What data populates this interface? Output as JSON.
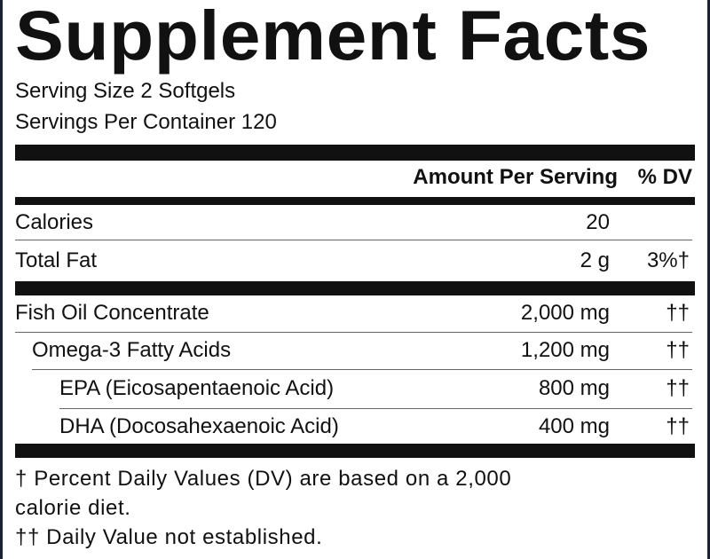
{
  "title": "Supplement Facts",
  "serving_size": "Serving Size 2 Softgels",
  "servings_per_container": "Servings Per Container 120",
  "header": {
    "amount": "Amount Per Serving",
    "dv": "% DV"
  },
  "rows": [
    {
      "name": "Calories",
      "amount": "20",
      "dv": ""
    },
    {
      "name": "Total Fat",
      "amount": "2 g",
      "dv": "3%†"
    },
    {
      "name": "Fish Oil Concentrate",
      "amount": "2,000 mg",
      "dv": "††"
    },
    {
      "name": "Omega-3 Fatty Acids",
      "amount": "1,200 mg",
      "dv": "††"
    },
    {
      "name": "EPA (Eicosapentaenoic Acid)",
      "amount": "800 mg",
      "dv": "††"
    },
    {
      "name": "DHA (Docosahexaenoic Acid)",
      "amount": "400 mg",
      "dv": "††"
    }
  ],
  "footnotes": [
    "† Percent Daily Values (DV) are based on a 2,000",
    "calorie diet.",
    "†† Daily Value not established."
  ]
}
